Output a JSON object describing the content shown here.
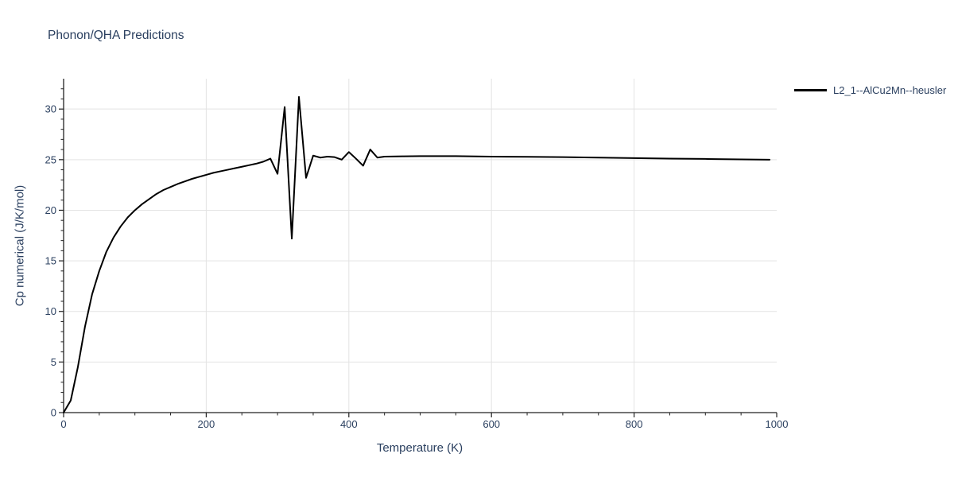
{
  "page": {
    "background_color": "#ffffff",
    "text_color": "#2a3f5f",
    "axis_color": "#222222",
    "grid_color": "#e3e3e3"
  },
  "chart_data": {
    "type": "line",
    "title": "Phonon/QHA Predictions",
    "xlabel": "Temperature (K)",
    "ylabel": "Cp numerical (J/K/mol)",
    "xlim": [
      0,
      1000
    ],
    "ylim": [
      0,
      33
    ],
    "x_major_ticks": [
      0,
      200,
      400,
      600,
      800,
      1000
    ],
    "x_minor_tick_step": 50,
    "y_major_ticks": [
      0,
      5,
      10,
      15,
      20,
      25,
      30
    ],
    "y_minor_tick_step": 1,
    "grid_x_values": [
      200,
      400,
      600,
      800
    ],
    "grid_y_values": [
      5,
      10,
      15,
      20,
      25,
      30
    ],
    "grid_on": true,
    "legend_position": "top-right-outside",
    "series": [
      {
        "name": "L2_1--AlCu2Mn--heusler",
        "color": "#000000",
        "line_width": 2,
        "x": [
          0,
          10,
          20,
          30,
          40,
          50,
          60,
          70,
          80,
          90,
          100,
          110,
          120,
          130,
          140,
          150,
          160,
          170,
          180,
          190,
          200,
          210,
          220,
          230,
          240,
          250,
          260,
          270,
          280,
          290,
          300,
          310,
          320,
          330,
          340,
          350,
          360,
          370,
          380,
          390,
          400,
          410,
          420,
          430,
          440,
          450,
          475,
          500,
          550,
          600,
          650,
          700,
          750,
          800,
          850,
          900,
          950,
          990
        ],
        "y": [
          0,
          1.2,
          4.5,
          8.5,
          11.7,
          14.0,
          15.9,
          17.3,
          18.4,
          19.3,
          20.0,
          20.6,
          21.1,
          21.6,
          22.0,
          22.3,
          22.6,
          22.85,
          23.1,
          23.3,
          23.5,
          23.7,
          23.85,
          24.0,
          24.15,
          24.3,
          24.45,
          24.6,
          24.8,
          25.1,
          23.6,
          30.2,
          17.2,
          31.2,
          23.2,
          25.4,
          25.2,
          25.3,
          25.25,
          25.0,
          25.75,
          25.1,
          24.4,
          26.0,
          25.2,
          25.3,
          25.33,
          25.35,
          25.35,
          25.3,
          25.28,
          25.25,
          25.2,
          25.15,
          25.1,
          25.07,
          25.03,
          25.0
        ]
      }
    ]
  }
}
